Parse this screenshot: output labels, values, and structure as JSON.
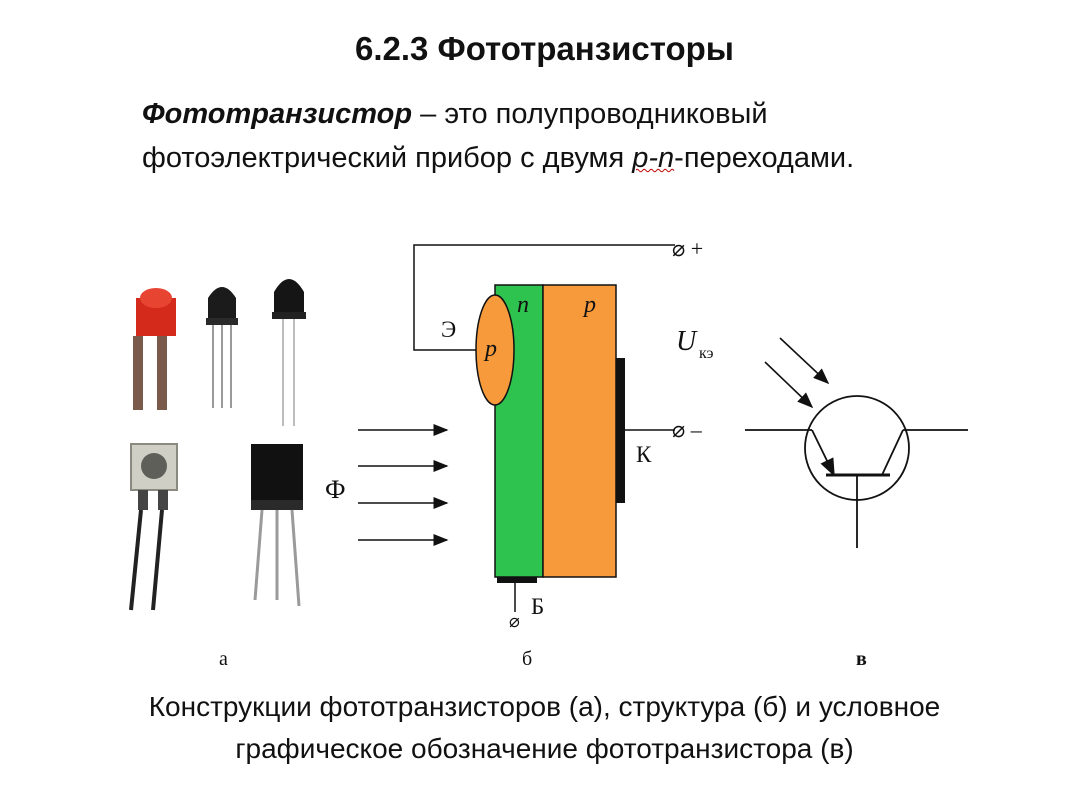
{
  "title": "6.2.3 Фототранзисторы",
  "definition": {
    "term": "Фототранзистор",
    "dash": " – это полупроводниковый",
    "line2_start": "фотоэлектрический прибор с двумя ",
    "pn": "p-n",
    "line2_end": "-переходами."
  },
  "figure": {
    "structure": {
      "n_label": "n",
      "p_label": "p",
      "emitter_p_label": "p",
      "emitter_label": "Э",
      "collector_label": "К",
      "base_label": "Б",
      "flux_label": "Ф",
      "plus_label": "⌀ +",
      "minus_label": "⌀ –",
      "base_terminal": "⌀",
      "voltage_U": "U",
      "voltage_sub": "кэ"
    },
    "panel_labels": {
      "a": "а",
      "b": "б",
      "c": "в"
    },
    "colors": {
      "n_region": "#2ec24f",
      "p_region": "#f79a3c",
      "emitter": "#f79a3c",
      "led_red": "#d42a1c"
    }
  },
  "caption": {
    "line1": "Конструкции фототранзисторов (а), структура (б) и условное",
    "line2": "графическое обозначение фототранзистора (в)"
  }
}
